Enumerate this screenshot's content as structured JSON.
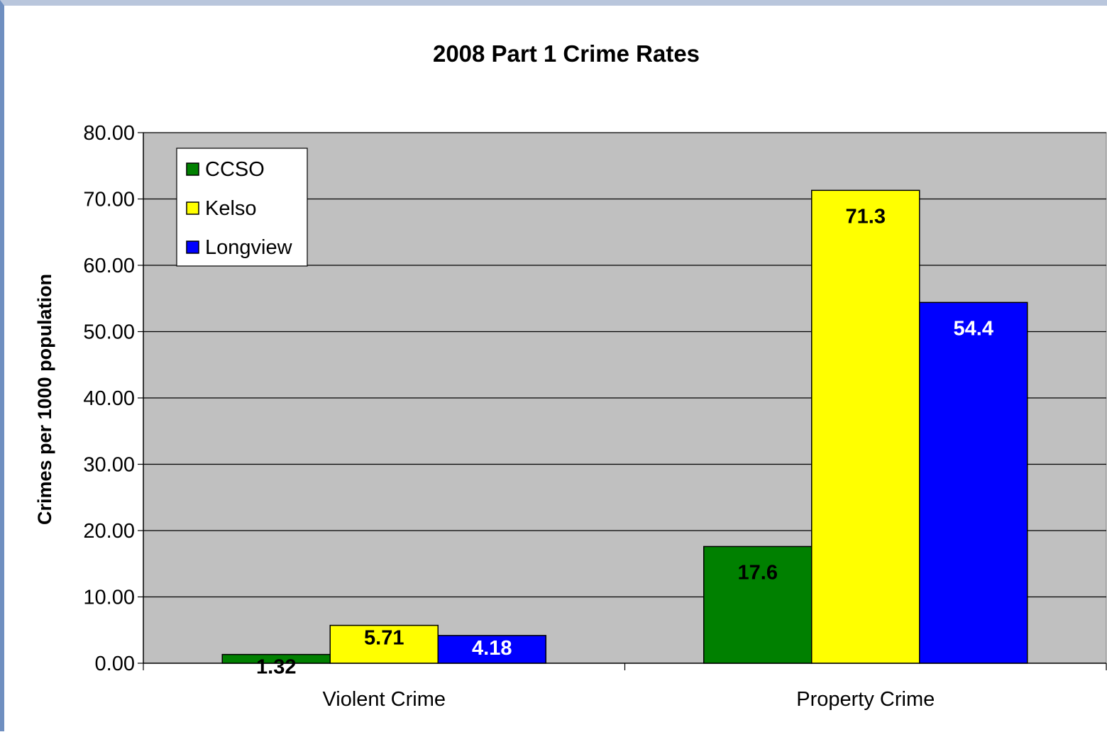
{
  "chart_data": {
    "type": "bar",
    "title": "2008 Part 1 Crime Rates",
    "xlabel": "",
    "ylabel": "Crimes per 1000 population",
    "categories": [
      "Violent Crime",
      "Property Crime"
    ],
    "series": [
      {
        "name": "CCSO",
        "color": "#008000",
        "label_color": "#000000",
        "values": [
          1.32,
          17.6
        ],
        "labels": [
          "1.32",
          "17.6"
        ]
      },
      {
        "name": "Kelso",
        "color": "#ffff00",
        "label_color": "#000000",
        "values": [
          5.71,
          71.3
        ],
        "labels": [
          "5.71",
          "71.3"
        ]
      },
      {
        "name": "Longview",
        "color": "#0000ff",
        "label_color": "#ffffff",
        "values": [
          4.18,
          54.4
        ],
        "labels": [
          "4.18",
          "54.4"
        ]
      }
    ],
    "ylim": [
      0,
      80
    ],
    "yticks": [
      "0.00",
      "10.00",
      "20.00",
      "30.00",
      "40.00",
      "50.00",
      "60.00",
      "70.00",
      "80.00"
    ],
    "grid": true,
    "legend": "top-left",
    "plot_background": "#c0c0c0"
  }
}
